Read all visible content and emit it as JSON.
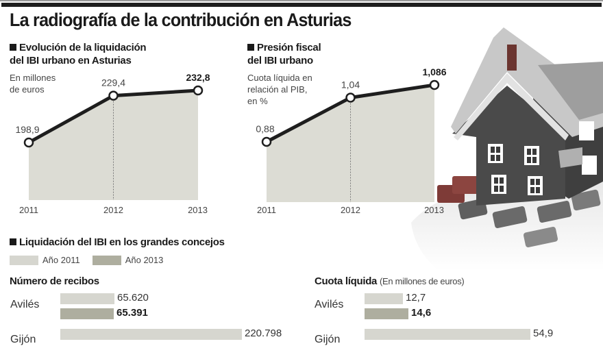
{
  "title": "La radiografía de la contribución en Asturias",
  "colors": {
    "area_fill": "#dcdcd4",
    "line": "#1e1e1e",
    "year_2011": "#d6d6cf",
    "year_2013": "#aeae9f"
  },
  "chart_data": [
    {
      "type": "area",
      "title": "Evolución de la liquidación del IBI urbano en Asturias",
      "ylabel": "En millones de euros",
      "x": [
        "2011",
        "2012",
        "2013"
      ],
      "values": [
        198.9,
        229.4,
        232.8
      ],
      "value_labels": [
        "198,9",
        "229,4",
        "232,8"
      ],
      "highlight_last": true
    },
    {
      "type": "area",
      "title": "Presión fiscal del IBI urbano",
      "ylabel": "Cuota líquida en relación al PIB, en %",
      "x": [
        "2011",
        "2012",
        "2013"
      ],
      "values": [
        0.88,
        1.04,
        1.086
      ],
      "value_labels": [
        "0,88",
        "1,04",
        "1,086"
      ],
      "highlight_last": true
    },
    {
      "type": "bar",
      "title": "Número de recibos",
      "section": "Liquidación del IBI en los grandes concejos",
      "legend": [
        "Año 2011",
        "Año 2013"
      ],
      "categories": [
        "Avilés",
        "Gijón"
      ],
      "series": [
        {
          "name": "Año 2011",
          "values": [
            65620,
            220798
          ],
          "labels": [
            "65.620",
            "220.798"
          ]
        },
        {
          "name": "Año 2013",
          "values": [
            65391,
            null
          ],
          "labels": [
            "65.391",
            ""
          ]
        }
      ]
    },
    {
      "type": "bar",
      "title": "Cuota líquida",
      "note": "(En millones de euros)",
      "categories": [
        "Avilés",
        "Gijón"
      ],
      "series": [
        {
          "name": "Año 2011",
          "values": [
            12.7,
            54.9
          ],
          "labels": [
            "12,7",
            "54,9"
          ]
        },
        {
          "name": "Año 2013",
          "values": [
            14.6,
            null
          ],
          "labels": [
            "14,6",
            ""
          ]
        }
      ]
    }
  ],
  "chart1": {
    "title_line1": "Evolución de la liquidación",
    "title_line2": "del IBI urbano en Asturias",
    "sub_line1": "En millones",
    "sub_line2": "de euros"
  },
  "chart2": {
    "title_line1": "Presión fiscal",
    "title_line2": "del IBI urbano",
    "sub_line1": "Cuota líquida en",
    "sub_line2": "relación al PIB,",
    "sub_line3": "en %"
  },
  "section3": {
    "title": "Liquidación del IBI en los grandes concejos",
    "legend_2011": "Año 2011",
    "legend_2013": "Año 2013",
    "recibos_title": "Número de recibos",
    "cuota_title": "Cuota líquida",
    "cuota_note": "(En millones de euros)",
    "city1": "Avilés",
    "city2": "Gijón"
  },
  "illustration": "house-on-calculator-photo"
}
